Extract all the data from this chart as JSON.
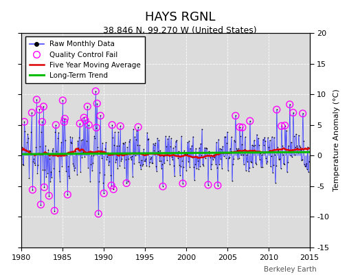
{
  "title": "HAYS RGNL",
  "subtitle": "38.846 N, 99.270 W (United States)",
  "ylabel": "Temperature Anomaly (°C)",
  "credit": "Berkeley Earth",
  "xlim": [
    1980,
    2015
  ],
  "ylim": [
    -15,
    20
  ],
  "yticks": [
    -15,
    -10,
    -5,
    0,
    5,
    10,
    15,
    20
  ],
  "xticks": [
    1980,
    1985,
    1990,
    1995,
    2000,
    2005,
    2010,
    2015
  ],
  "bg_color": "#dcdcdc",
  "line_color": "#4444ff",
  "ma_color": "#dd0000",
  "trend_color": "#00bb00",
  "qc_color": "#ff00ff",
  "seed": 12345,
  "noise_scale": 2.0,
  "qc_threshold": 4.5
}
